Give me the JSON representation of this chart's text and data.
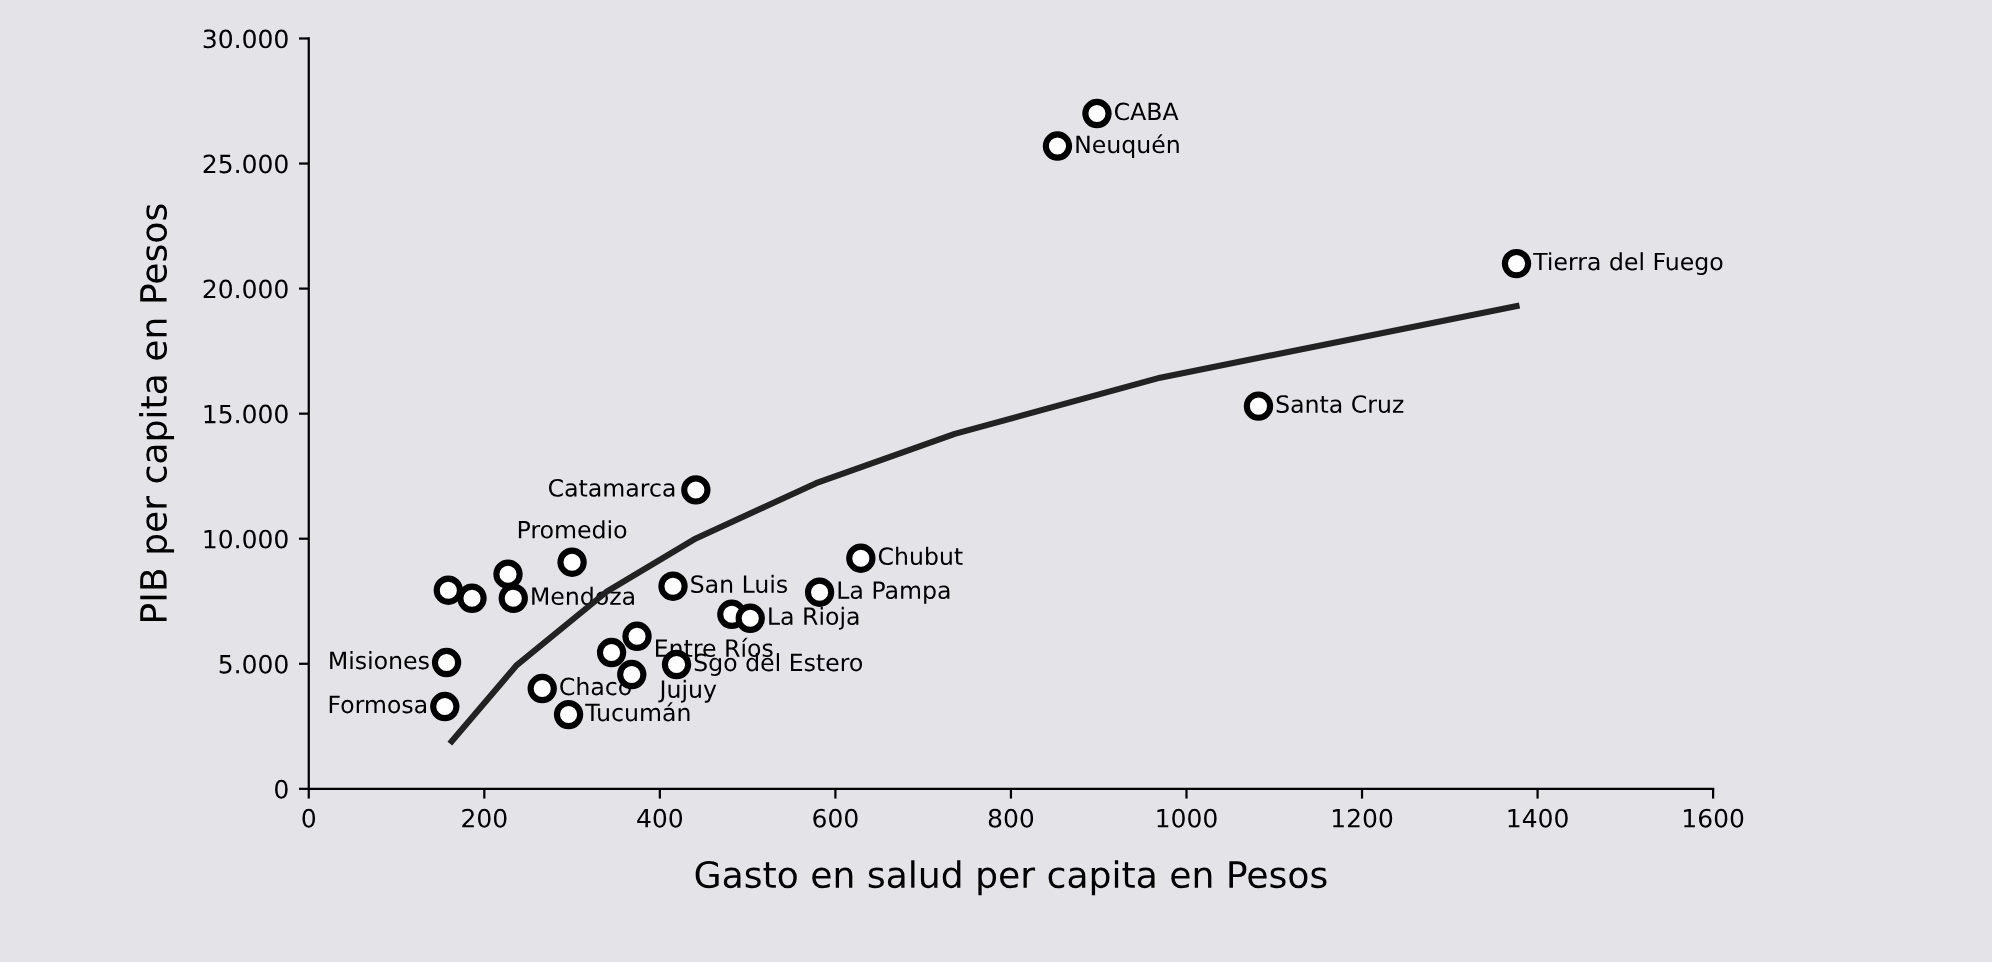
{
  "chart_data": {
    "type": "scatter",
    "xlabel": "Gasto en salud per capita en Pesos",
    "ylabel": "PIB per capita en Pesos",
    "xlim": [
      0,
      1600
    ],
    "xticks": [
      0,
      200,
      400,
      600,
      800,
      1000,
      1200,
      1400,
      1600
    ],
    "ylim": [
      0,
      30000
    ],
    "yticks": [
      {
        "value": 0,
        "label": "0"
      },
      {
        "value": 5000,
        "label": "5.000"
      },
      {
        "value": 10000,
        "label": "10.000"
      },
      {
        "value": 15000,
        "label": "15.000"
      },
      {
        "value": 20000,
        "label": "20.000"
      },
      {
        "value": 25000,
        "label": "25.000"
      },
      {
        "value": 30000,
        "label": "30.000"
      }
    ],
    "grid": false,
    "legend": false,
    "marker": "circle",
    "series": [
      {
        "type": "scatter",
        "color": "#000000",
        "x": [
          898,
          853,
          1376,
          1082,
          441,
          629,
          582,
          415,
          300,
          233,
          159,
          186,
          227,
          482,
          503,
          374,
          419,
          368,
          345,
          266,
          296,
          155,
          157
        ],
        "values": [
          27000,
          25700,
          21000,
          15300,
          11950,
          9220,
          7860,
          8100,
          9060,
          7620,
          7940,
          7620,
          8580,
          6980,
          6820,
          6100,
          4970,
          4570,
          5450,
          4010,
          2970,
          3290,
          5050
        ]
      },
      {
        "type": "line",
        "color": "#222222",
        "line_style": "solid",
        "marker": "none",
        "x": [
          163,
          237,
          339,
          441,
          578,
          736,
          970,
          1376
        ],
        "values": [
          1900,
          4950,
          7870,
          10010,
          12220,
          14190,
          16440,
          19300
        ]
      }
    ],
    "annotations": [
      {
        "text": "CABA",
        "x": 898,
        "y": 27000
      },
      {
        "text": "Neuquén",
        "x": 853,
        "y": 25700
      },
      {
        "text": "Tierra del Fuego",
        "x": 1376,
        "y": 21000
      },
      {
        "text": "Santa Cruz",
        "x": 1082,
        "y": 15300
      },
      {
        "text": "Catamarca",
        "x": 441,
        "y": 11950
      },
      {
        "text": "Chubut",
        "x": 629,
        "y": 9220
      },
      {
        "text": "La Pampa",
        "x": 582,
        "y": 7860
      },
      {
        "text": "San Luis",
        "x": 415,
        "y": 8100
      },
      {
        "text": "Promedio",
        "x": 300,
        "y": 9060
      },
      {
        "text": "Mendoza",
        "x": 233,
        "y": 7620
      },
      {
        "text": "La Rioja",
        "x": 503,
        "y": 6820
      },
      {
        "text": "Entre Ríos",
        "x": 374,
        "y": 6100
      },
      {
        "text": "Sgo del Estero",
        "x": 419,
        "y": 4970
      },
      {
        "text": "Jujuy",
        "x": 368,
        "y": 4570
      },
      {
        "text": "Chaco",
        "x": 266,
        "y": 4010
      },
      {
        "text": "Tucumán",
        "x": 296,
        "y": 2970
      },
      {
        "text": "Formosa",
        "x": 155,
        "y": 3290
      },
      {
        "text": "Misiones",
        "x": 157,
        "y": 5050
      }
    ]
  }
}
